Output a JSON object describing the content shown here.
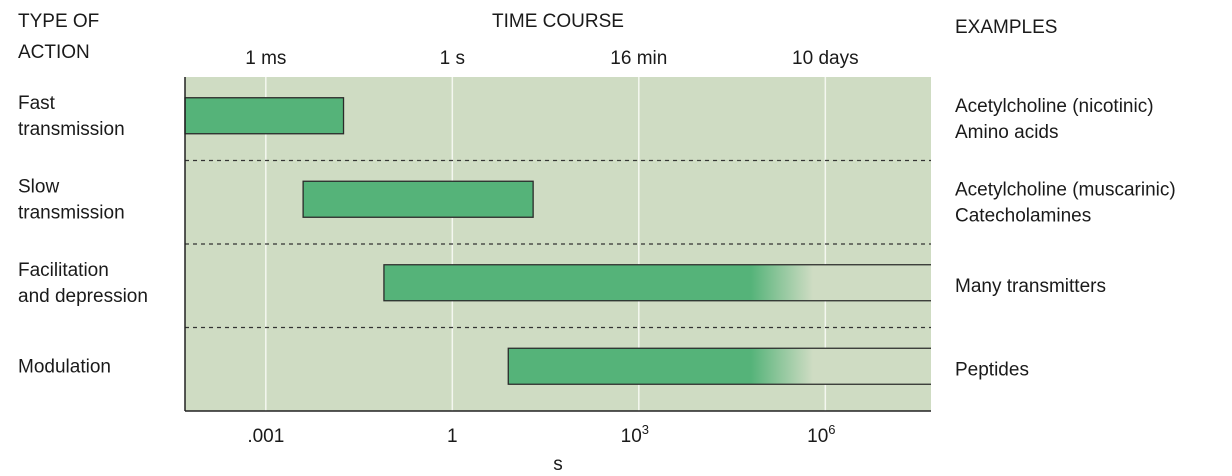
{
  "chart_data": {
    "type": "bar",
    "headers": {
      "type_of_action": [
        "TYPE OF",
        "ACTION"
      ],
      "time_course": "TIME COURSE",
      "examples": "EXAMPLES"
    },
    "top_ticks": [
      {
        "label": "1 ms",
        "log10_s": -3
      },
      {
        "label": "1 s",
        "log10_s": 0
      },
      {
        "label": "16 min",
        "log10_s": 3
      },
      {
        "label": "10 days",
        "log10_s": 6
      }
    ],
    "bottom_ticks": [
      {
        "base": ".001",
        "exp": "",
        "log10_s": -3
      },
      {
        "base": "1",
        "exp": "",
        "log10_s": 0
      },
      {
        "base": "10",
        "exp": "3",
        "log10_s": 3
      },
      {
        "base": "10",
        "exp": "6",
        "log10_s": 6
      }
    ],
    "xlabel": "s",
    "x_scale": "log10",
    "xlim_log10_s": [
      -4.3,
      7.7
    ],
    "rows": [
      {
        "name_lines": [
          "Fast",
          "transmission"
        ],
        "start_log10_s": -4.3,
        "end_log10_s": -1.75,
        "fades": false,
        "examples": [
          "Acetylcholine (nicotinic)",
          "Amino acids"
        ]
      },
      {
        "name_lines": [
          "Slow",
          "transmission"
        ],
        "start_log10_s": -2.4,
        "end_log10_s": 1.3,
        "fades": false,
        "examples": [
          "Acetylcholine (muscarinic)",
          "Catecholamines"
        ]
      },
      {
        "name_lines": [
          "Facilitation",
          "and depression"
        ],
        "start_log10_s": -1.1,
        "end_log10_s": 7.7,
        "fades": true,
        "fade_log10_s": [
          4.8,
          5.8
        ],
        "examples": [
          "Many transmitters"
        ]
      },
      {
        "name_lines": [
          "Modulation"
        ],
        "start_log10_s": 0.9,
        "end_log10_s": 7.7,
        "fades": true,
        "fade_log10_s": [
          4.8,
          5.8
        ],
        "examples": [
          "Peptides"
        ]
      }
    ],
    "colors": {
      "panel": "#cfdcc3",
      "bar": "#55b379",
      "bar_faded": "#cfdcc3",
      "grid": "#f4f7f0",
      "outline": "#2a2a2a"
    },
    "grid": true
  }
}
